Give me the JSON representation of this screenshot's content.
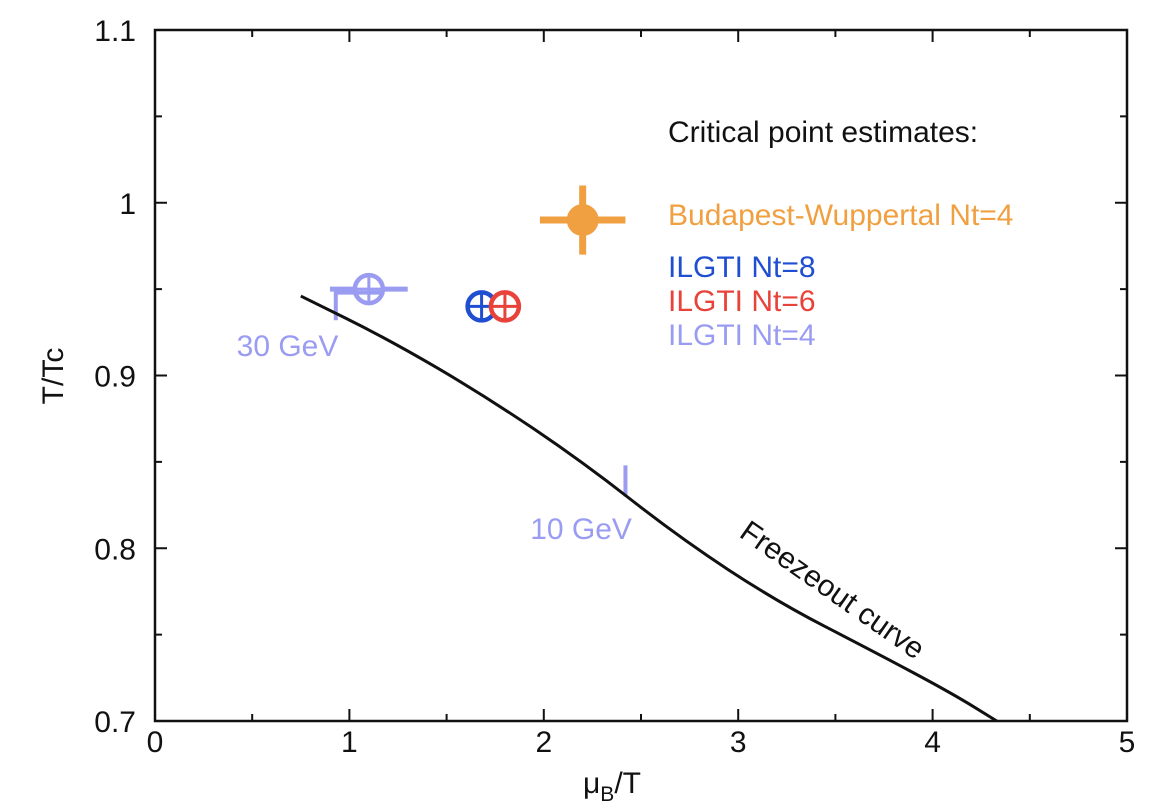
{
  "chart_data": {
    "type": "scatter",
    "title": "",
    "xlabel": "μ",
    "xlabel_sub": "B",
    "xlabel_suffix": "/T",
    "ylabel": "T/Tc",
    "xlim": [
      0,
      5
    ],
    "ylim": [
      0.7,
      1.1
    ],
    "grid": false,
    "x_ticks": [
      0,
      1,
      2,
      3,
      4,
      5
    ],
    "x_tick_labels": [
      "0",
      "1",
      "2",
      "3",
      "4",
      "5"
    ],
    "y_ticks": [
      0.7,
      0.8,
      0.9,
      1.0,
      1.1
    ],
    "y_tick_labels": [
      "0.7",
      "0.8",
      "0.9",
      "1",
      "1.1"
    ],
    "legend_title": "Critical point estimates:",
    "legend_placement": "top-right",
    "series": [
      {
        "name": "Budapest-Wuppertal Nt=4",
        "color": "#f0a040",
        "marker": "filled-circle",
        "points": [
          {
            "x": 2.2,
            "y": 0.99,
            "xerr": 0.22,
            "yerr": 0.02
          }
        ]
      },
      {
        "name": "ILGTI Nt=8",
        "color": "#1f4fd0",
        "marker": "crossed-circle",
        "points": [
          {
            "x": 1.68,
            "y": 0.94,
            "xerr": 0.0,
            "yerr": 0.0
          }
        ]
      },
      {
        "name": "ILGTI Nt=6",
        "color": "#e8423a",
        "marker": "crossed-circle",
        "points": [
          {
            "x": 1.8,
            "y": 0.94,
            "xerr": 0.0,
            "yerr": 0.0
          }
        ]
      },
      {
        "name": "ILGTI Nt=4",
        "color": "#9a9cf2",
        "marker": "crossed-circle",
        "points": [
          {
            "x": 1.1,
            "y": 0.95,
            "xerr": 0.2,
            "yerr": 0.0
          }
        ]
      }
    ],
    "freezeout_curve": {
      "label": "Freezeout curve",
      "color": "#111111",
      "x": [
        0.75,
        1.2,
        1.7,
        2.2,
        2.7,
        3.2,
        3.7,
        4.1,
        4.33
      ],
      "y": [
        0.946,
        0.921,
        0.888,
        0.85,
        0.806,
        0.769,
        0.74,
        0.716,
        0.7
      ]
    },
    "annotations": [
      {
        "text": "30 GeV",
        "color": "#9a9cf2",
        "x": 0.42,
        "y": 0.917,
        "marker": {
          "type": "bracket",
          "x": 0.93,
          "y0": 0.932,
          "y1": 0.948,
          "tail": 0.25
        }
      },
      {
        "text": "10 GeV",
        "color": "#9a9cf2",
        "x": 1.93,
        "y": 0.811,
        "marker": {
          "type": "tick",
          "x": 2.42,
          "y0": 0.83,
          "y1": 0.848
        }
      }
    ]
  }
}
